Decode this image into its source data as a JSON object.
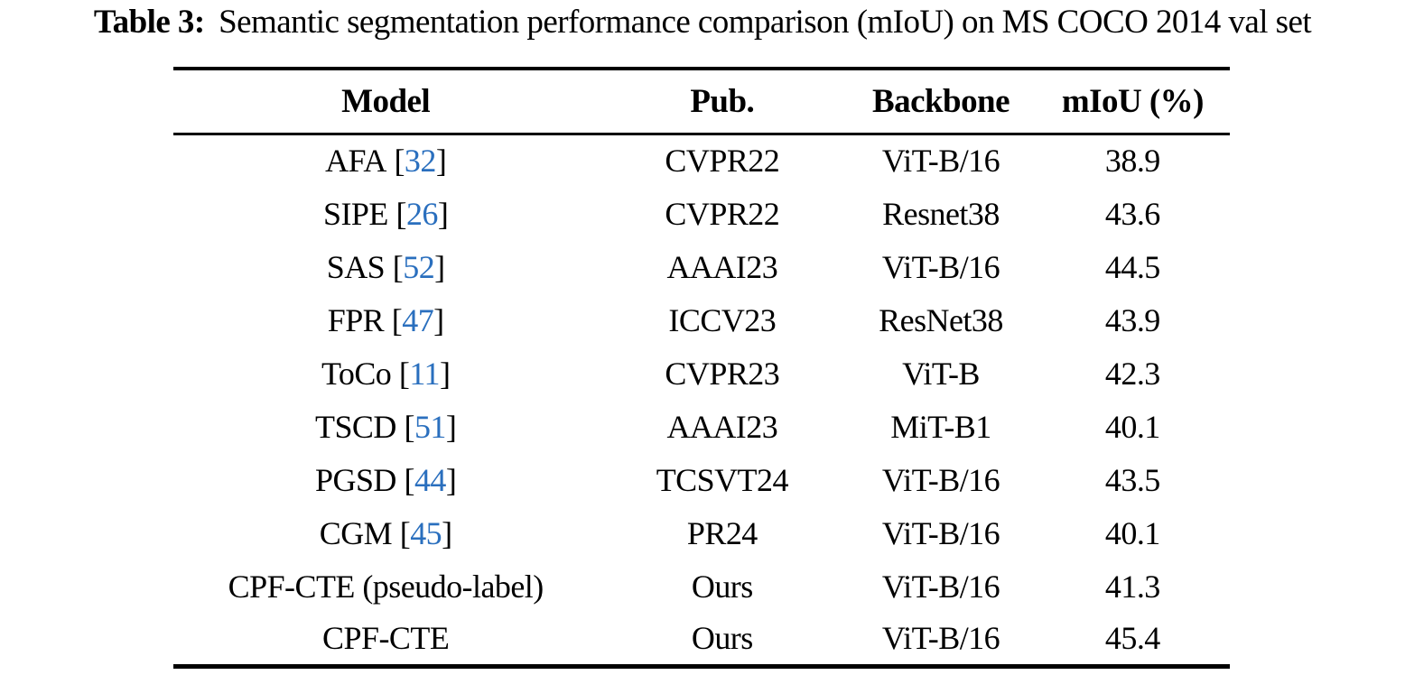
{
  "caption": {
    "label": "Table 3:",
    "text": "Semantic segmentation performance comparison (mIoU) on MS COCO 2014 val set"
  },
  "colors": {
    "text": "#000000",
    "citation_blue": "#2a6fbe",
    "rule": "#000000"
  },
  "table": {
    "headers": [
      "Model",
      "Pub.",
      "Backbone",
      "mIoU (%)"
    ],
    "rows": [
      {
        "model": "AFA",
        "cite_open": "[",
        "cite": "32",
        "cite_close": "]",
        "pub": "CVPR22",
        "backbone": "ViT-B/16",
        "miou": "38.9"
      },
      {
        "model": "SIPE",
        "cite_open": "[",
        "cite": "26",
        "cite_close": "]",
        "pub": "CVPR22",
        "backbone": "Resnet38",
        "miou": "43.6"
      },
      {
        "model": "SAS",
        "cite_open": "[",
        "cite": "52",
        "cite_close": "]",
        "pub": "AAAI23",
        "backbone": "ViT-B/16",
        "miou": "44.5"
      },
      {
        "model": "FPR",
        "cite_open": "[",
        "cite": "47",
        "cite_close": "]",
        "pub": "ICCV23",
        "backbone": "ResNet38",
        "miou": "43.9"
      },
      {
        "model": "ToCo",
        "cite_open": "[",
        "cite": "11",
        "cite_close": "]",
        "pub": "CVPR23",
        "backbone": "ViT-B",
        "miou": "42.3"
      },
      {
        "model": "TSCD",
        "cite_open": "[",
        "cite": "51",
        "cite_close": "]",
        "pub": "AAAI23",
        "backbone": "MiT-B1",
        "miou": "40.1"
      },
      {
        "model": "PGSD",
        "cite_open": "[",
        "cite": "44",
        "cite_close": "]",
        "pub": "TCSVT24",
        "backbone": "ViT-B/16",
        "miou": "43.5"
      },
      {
        "model": "CGM",
        "cite_open": "[",
        "cite": "45",
        "cite_close": "]",
        "pub": "PR24",
        "backbone": "ViT-B/16",
        "miou": "40.1"
      },
      {
        "model": "CPF-CTE (pseudo-label)",
        "pub": "Ours",
        "backbone": "ViT-B/16",
        "miou": "41.3"
      },
      {
        "model": "CPF-CTE",
        "pub": "Ours",
        "backbone": "ViT-B/16",
        "miou": "45.4"
      }
    ]
  }
}
